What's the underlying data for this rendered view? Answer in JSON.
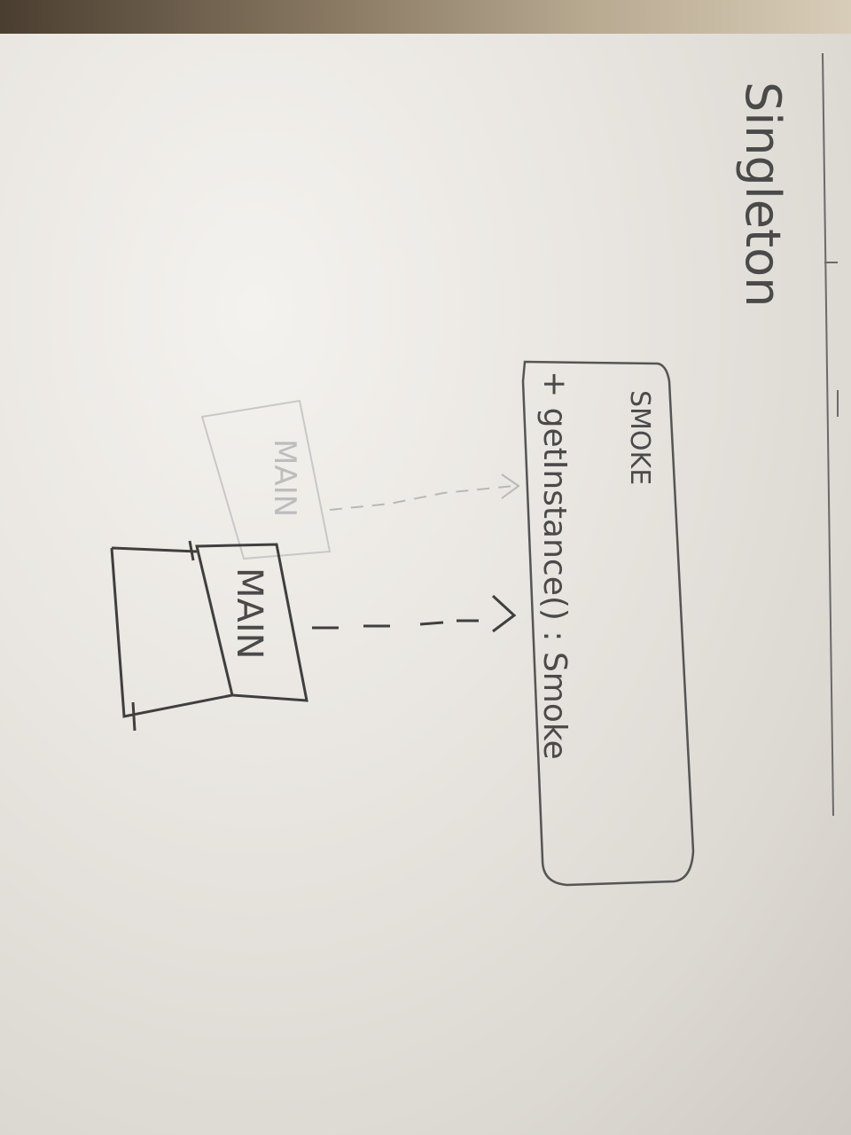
{
  "title": "Singleton",
  "class_box": {
    "name": "SMOKE",
    "method": "+ getInstance() : Smoke"
  },
  "client_box": {
    "name": "MAIN",
    "erased_name": "MAIN"
  },
  "colors": {
    "pencil": "#4a4a4a",
    "erased": "#bdbdbd",
    "paper": "#ebe8e3"
  }
}
